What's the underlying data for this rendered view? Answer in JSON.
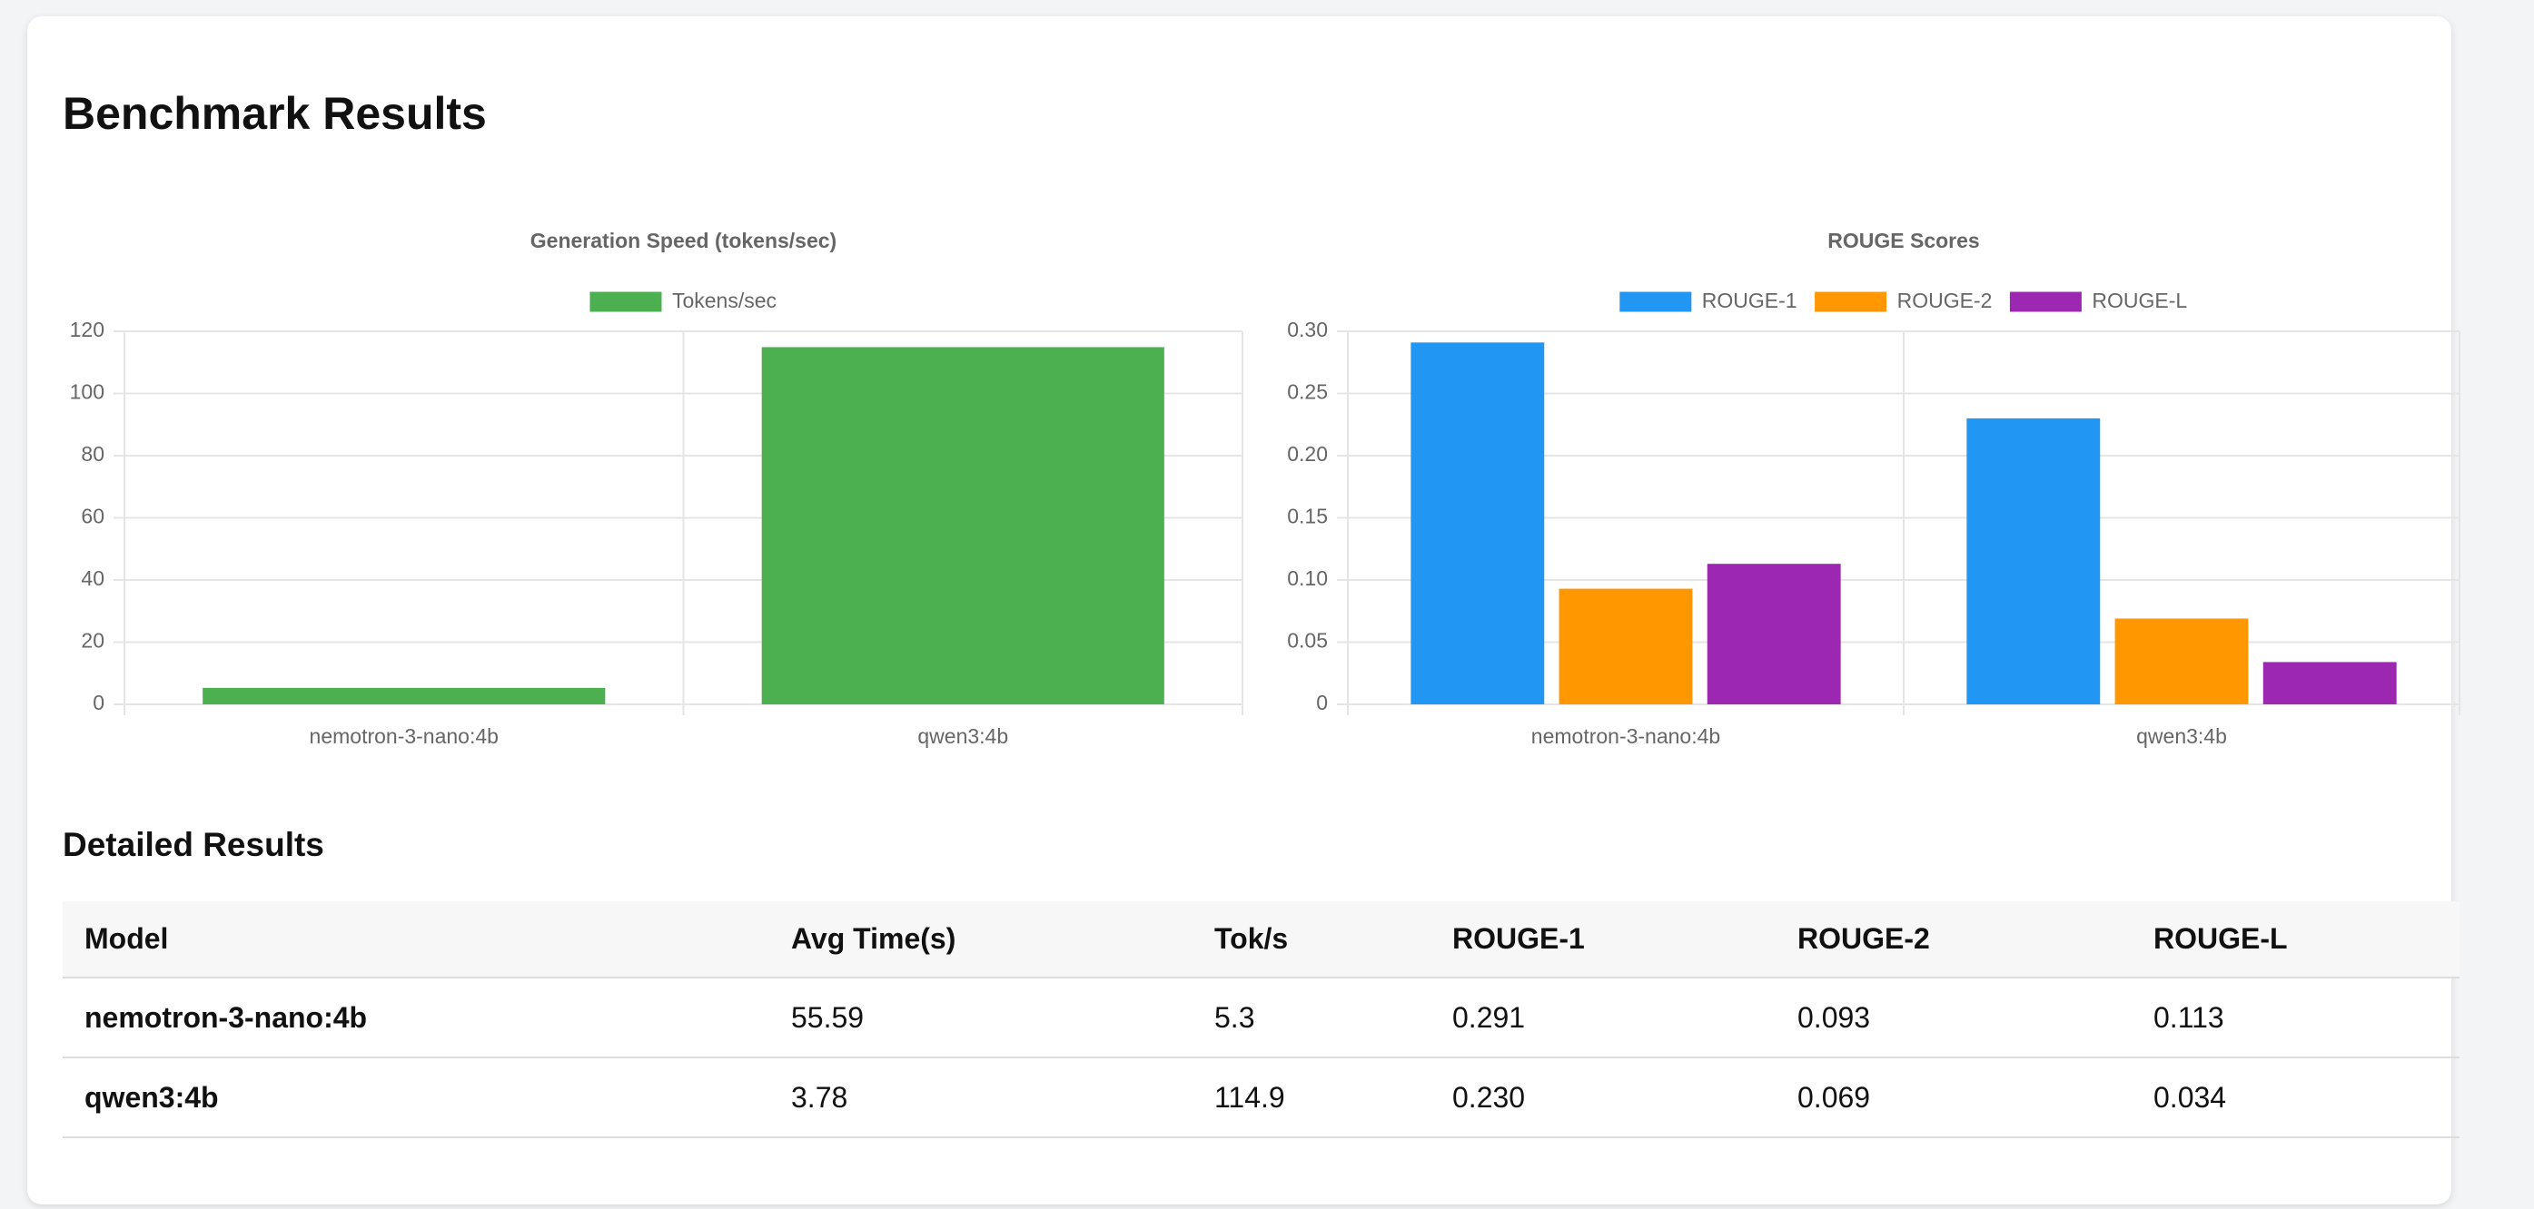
{
  "title": "Benchmark Results",
  "chart_data": [
    {
      "type": "bar",
      "title": "Generation Speed (tokens/sec)",
      "categories": [
        "nemotron-3-nano:4b",
        "qwen3:4b"
      ],
      "series": [
        {
          "name": "Tokens/sec",
          "color": "#4caf50",
          "values": [
            5.3,
            114.9
          ]
        }
      ],
      "ylim": [
        0,
        120
      ],
      "yticks": [
        0,
        20,
        40,
        60,
        80,
        100,
        120
      ],
      "grid": true
    },
    {
      "type": "bar",
      "title": "ROUGE Scores",
      "categories": [
        "nemotron-3-nano:4b",
        "qwen3:4b"
      ],
      "series": [
        {
          "name": "ROUGE-1",
          "color": "#2196f3",
          "values": [
            0.291,
            0.23
          ]
        },
        {
          "name": "ROUGE-2",
          "color": "#ff9800",
          "values": [
            0.093,
            0.069
          ]
        },
        {
          "name": "ROUGE-L",
          "color": "#9c27b0",
          "values": [
            0.113,
            0.034
          ]
        }
      ],
      "ylim": [
        0,
        0.3
      ],
      "yticks": [
        0,
        0.05,
        {
          "value": 0.1,
          "label": "0.10"
        },
        0.15,
        {
          "value": 0.2,
          "label": "0.20"
        },
        0.25,
        {
          "value": 0.3,
          "label": "0.30"
        }
      ],
      "grid": true
    }
  ],
  "table": {
    "title": "Detailed Results",
    "columns": [
      "Model",
      "Avg Time(s)",
      "Tok/s",
      "ROUGE-1",
      "ROUGE-2",
      "ROUGE-L"
    ],
    "rows": [
      [
        "nemotron-3-nano:4b",
        "55.59",
        "5.3",
        "0.291",
        "0.093",
        "0.113"
      ],
      [
        "qwen3:4b",
        "3.78",
        "114.9",
        "0.230",
        "0.069",
        "0.034"
      ]
    ]
  }
}
